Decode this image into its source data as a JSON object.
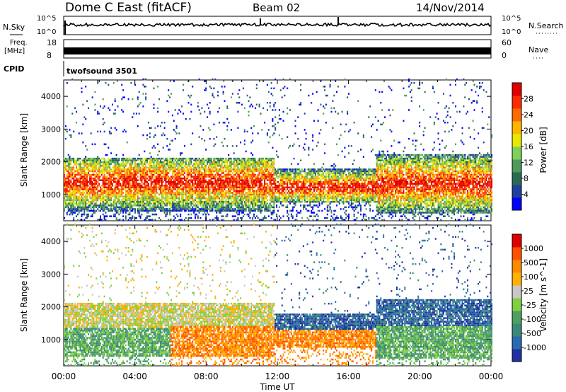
{
  "header": {
    "station": "Dome C East (fitACF)",
    "beam": "Beam 02",
    "date": "14/Nov/2014"
  },
  "status_panels": {
    "nsky_label": "N.Sky",
    "nsky_ticks": [
      "10^5",
      "10^0"
    ],
    "nsearch_label": "N.Search",
    "freq_label_1": "Freq.",
    "freq_label_2": "[MHz]",
    "freq_ticks": [
      "18",
      "8"
    ],
    "nave_label": "Nave",
    "nave_ticks": [
      "60",
      "0"
    ],
    "cpid_label": "CPID",
    "cpid_value": "twofsound 3501"
  },
  "chart_data": [
    {
      "type": "heatmap",
      "name": "power",
      "ylabel": "Slant Range [km]",
      "ylim": [
        200,
        4500
      ],
      "yticks": [
        "4000",
        "3000",
        "2000",
        "1000"
      ],
      "colorbar_label": "Power [dB]",
      "colorbar_ticks": [
        "28",
        "24",
        "20",
        "16",
        "12",
        "8",
        "4"
      ],
      "colorbar_colors": [
        "#0000ff",
        "#1f3f9e",
        "#2a6a52",
        "#4f9a5a",
        "#7fd05a",
        "#e8e800",
        "#ffb400",
        "#ff6a00",
        "#ff2a00",
        "#e00000"
      ],
      "bands": [
        {
          "t0": 0.0,
          "t1": 11.8,
          "r0": 450,
          "r1": 2100,
          "peak": 1350
        },
        {
          "t0": 11.8,
          "t1": 17.5,
          "r0": 700,
          "r1": 1750,
          "peak": 1200
        },
        {
          "t0": 17.5,
          "t1": 24.0,
          "r0": 400,
          "r1": 2200,
          "peak": 1300
        }
      ]
    },
    {
      "type": "heatmap",
      "name": "velocity",
      "ylabel": "Slant Range [km]",
      "ylim": [
        200,
        4500
      ],
      "yticks": [
        "4000",
        "3000",
        "2000",
        "1000"
      ],
      "colorbar_label": "Velocity [m s^-1]",
      "colorbar_ticks": [
        "1000",
        "500",
        "100",
        "25",
        "-25",
        "-100",
        "-500",
        "-1000"
      ],
      "colorbar_colors": [
        "#2030a0",
        "#2a6ab0",
        "#3a8a7a",
        "#4fa060",
        "#7fd040",
        "#c8c8c8",
        "#ffb000",
        "#ff8a00",
        "#ff5000",
        "#e00000"
      ],
      "bands": [
        {
          "t0": 0.0,
          "t1": 11.8,
          "r0": 450,
          "r1": 2100,
          "peak": 1350
        },
        {
          "t0": 11.8,
          "t1": 17.5,
          "r0": 700,
          "r1": 1750,
          "peak": 1200
        },
        {
          "t0": 17.5,
          "t1": 24.0,
          "r0": 400,
          "r1": 2200,
          "peak": 1300
        }
      ]
    }
  ],
  "time_axis": {
    "xlabel": "Time UT",
    "xlim": [
      0,
      24
    ],
    "ticks": [
      "00:00",
      "04:00",
      "08:00",
      "12:00",
      "16:00",
      "20:00",
      "00:00"
    ]
  }
}
